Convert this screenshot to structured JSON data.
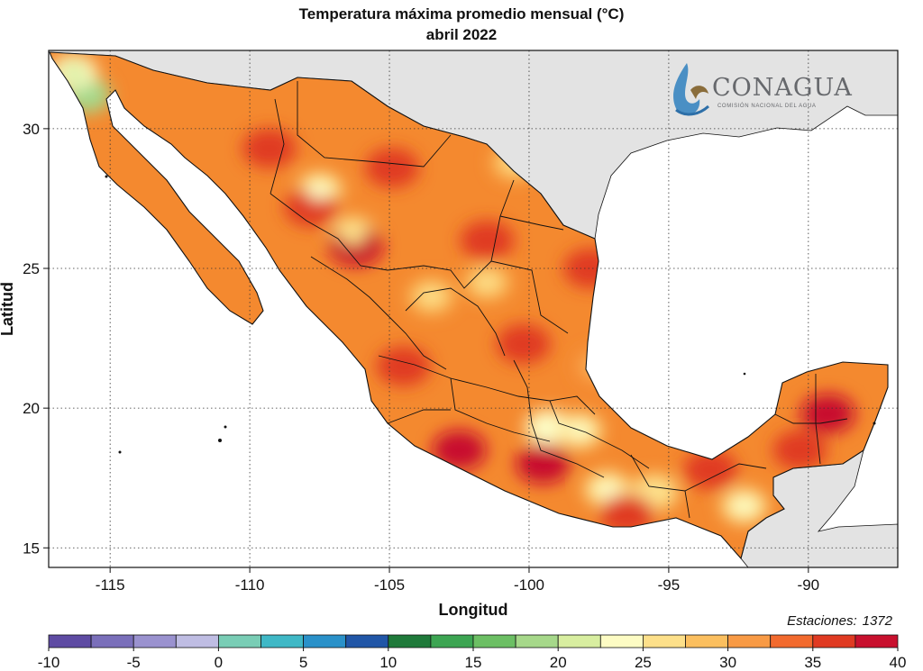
{
  "title": "Temperatura máxima promedio mensual (°C)",
  "subtitle": "abril 2022",
  "logo": {
    "name": "CONAGUA",
    "tagline": "COMISIÓN NACIONAL DEL AGUA",
    "icon": "conagua-logo"
  },
  "stations": {
    "label": "Estaciones:",
    "value": "1372"
  },
  "chart_data": {
    "type": "heatmap",
    "map": "Mexico",
    "xlabel": "Longitud",
    "ylabel": "Latitud",
    "xlim": [
      -117.2,
      -86.8
    ],
    "ylim": [
      14.3,
      32.8
    ],
    "xticks": [
      -115,
      -110,
      -105,
      -100,
      -95,
      -90
    ],
    "yticks": [
      15,
      20,
      25,
      30
    ],
    "xtick_labels": [
      "-115",
      "-110",
      "-105",
      "-100",
      "-95",
      "-90"
    ],
    "ytick_labels": [
      "15",
      "20",
      "25",
      "30"
    ],
    "grid": true,
    "colorbar": {
      "min": -10,
      "max": 40,
      "step": 2.5,
      "tick_labels": [
        "-10",
        "-5",
        "0",
        "5",
        "10",
        "15",
        "20",
        "25",
        "30",
        "35",
        "40"
      ],
      "colors": [
        "#5e4ba3",
        "#7a6fba",
        "#9a92cf",
        "#bfbde3",
        "#79cdb5",
        "#3fb8c6",
        "#2a91c9",
        "#2156a7",
        "#1f7a3a",
        "#3ca552",
        "#6cbf64",
        "#a6d88a",
        "#d8eea0",
        "#fdfcc4",
        "#fde08a",
        "#fbbf5f",
        "#f89a45",
        "#f26a2e",
        "#e03a22",
        "#c8102e"
      ]
    },
    "hotspots": [
      {
        "lon": -104.9,
        "lat": 28.6,
        "temp": 36.5
      },
      {
        "lon": -109.3,
        "lat": 29.3,
        "temp": 36.5
      },
      {
        "lon": -101.5,
        "lat": 26.0,
        "temp": 36.0
      },
      {
        "lon": -100.2,
        "lat": 22.3,
        "temp": 36.0
      },
      {
        "lon": -97.8,
        "lat": 25.0,
        "temp": 35.5
      },
      {
        "lon": -102.5,
        "lat": 18.5,
        "temp": 38.5
      },
      {
        "lon": -99.5,
        "lat": 18.0,
        "temp": 38.0
      },
      {
        "lon": -93.5,
        "lat": 17.8,
        "temp": 37.0
      },
      {
        "lon": -89.3,
        "lat": 19.8,
        "temp": 37.5
      },
      {
        "lon": -90.3,
        "lat": 18.5,
        "temp": 37.0
      },
      {
        "lon": -106.2,
        "lat": 25.8,
        "temp": 37.5
      },
      {
        "lon": -104.5,
        "lat": 21.5,
        "temp": 36.5
      },
      {
        "lon": -96.5,
        "lat": 16.2,
        "temp": 36.5
      },
      {
        "lon": -107.8,
        "lat": 27.2,
        "temp": 35.0
      }
    ],
    "coolspots": [
      {
        "lon": -115.8,
        "lat": 31.2,
        "temp": 19.0
      },
      {
        "lon": -116.3,
        "lat": 32.0,
        "temp": 23.5
      },
      {
        "lon": -107.5,
        "lat": 27.8,
        "temp": 26.0
      },
      {
        "lon": -106.3,
        "lat": 26.2,
        "temp": 27.0
      },
      {
        "lon": -103.5,
        "lat": 24.0,
        "temp": 28.5
      },
      {
        "lon": -101.5,
        "lat": 24.5,
        "temp": 28.5
      },
      {
        "lon": -99.3,
        "lat": 19.3,
        "temp": 24.5
      },
      {
        "lon": -98.2,
        "lat": 19.2,
        "temp": 25.0
      },
      {
        "lon": -97.2,
        "lat": 17.1,
        "temp": 26.0
      },
      {
        "lon": -95.5,
        "lat": 17.0,
        "temp": 26.5
      },
      {
        "lon": -92.3,
        "lat": 16.5,
        "temp": 26.0
      },
      {
        "lon": -100.5,
        "lat": 28.8,
        "temp": 28.5
      },
      {
        "lon": -97.5,
        "lat": 21.5,
        "temp": 30.0
      }
    ]
  }
}
